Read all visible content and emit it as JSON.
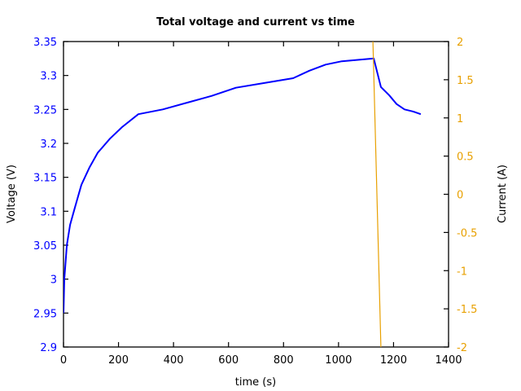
{
  "chart_data": {
    "type": "line",
    "title": "Total voltage and current vs time",
    "xlabel": "time (s)",
    "ylabel": "Voltage (V)",
    "y2label": "Current (A)",
    "xlim": [
      0,
      1400
    ],
    "ylim": [
      2.9,
      3.35
    ],
    "y2lim": [
      -2,
      2
    ],
    "grid": false,
    "legend": null,
    "x_ticks": [
      "0",
      "200",
      "400",
      "600",
      "800",
      "1000",
      "1200",
      "1400"
    ],
    "y_ticks": [
      "2.9",
      "2.95",
      "3",
      "3.05",
      "3.1",
      "3.15",
      "3.2",
      "3.25",
      "3.3",
      "3.35"
    ],
    "y2_ticks": [
      "-2",
      "-1.5",
      "-1",
      "-0.5",
      "0",
      "0.5",
      "1",
      "1.5",
      "2"
    ],
    "series": [
      {
        "name": "Voltage",
        "axis": "left",
        "color": "#0000ff",
        "x": [
          0,
          3,
          12,
          24,
          41,
          65,
          95,
          124,
          169,
          213,
          272,
          361,
          450,
          539,
          627,
          746,
          835,
          894,
          953,
          1012,
          1128,
          1154,
          1184,
          1211,
          1240,
          1270,
          1299
        ],
        "values": [
          2.95,
          3.0,
          3.05,
          3.08,
          3.105,
          3.139,
          3.165,
          3.186,
          3.207,
          3.224,
          3.243,
          3.25,
          3.26,
          3.27,
          3.282,
          3.29,
          3.296,
          3.307,
          3.316,
          3.321,
          3.325,
          3.283,
          3.271,
          3.258,
          3.25,
          3.247,
          3.243
        ]
      },
      {
        "name": "Current",
        "axis": "right",
        "color": "#e8a000",
        "x": [
          1125,
          1154
        ],
        "values": [
          2.0,
          -2.0
        ]
      }
    ]
  },
  "colors": {
    "voltage_axis": "#0000ff",
    "current_axis": "#e8a000",
    "frame": "#000000"
  }
}
